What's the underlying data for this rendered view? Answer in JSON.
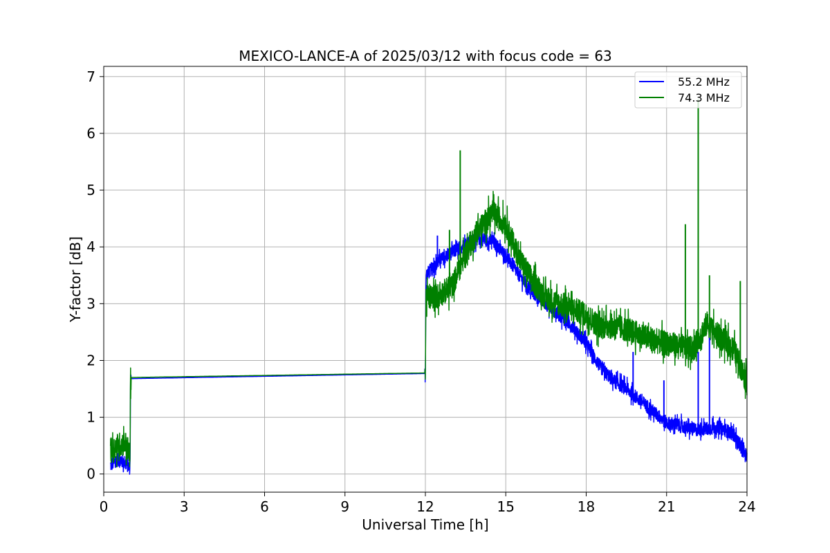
{
  "chart_data": {
    "type": "line",
    "title": "MEXICO-LANCE-A of 2025/03/12 with focus code = 63",
    "xlabel": "Universal Time [h]",
    "ylabel": "Y-factor [dB]",
    "xlim": [
      0,
      24
    ],
    "ylim": [
      -0.32,
      7.18
    ],
    "xticks": [
      0,
      3,
      6,
      9,
      12,
      15,
      18,
      21,
      24
    ],
    "yticks": [
      0,
      1,
      2,
      3,
      4,
      5,
      6,
      7
    ],
    "grid": true,
    "legend_position": "top-right",
    "series": [
      {
        "name": "55.2 MHz",
        "color": "#0000ff",
        "noise": 0.12,
        "x": [
          0.25,
          0.5,
          0.8,
          0.98,
          1.0,
          12.0,
          12.02,
          12.5,
          13.0,
          13.5,
          14.0,
          14.5,
          15.0,
          15.5,
          16.0,
          16.5,
          17.0,
          17.5,
          18.0,
          18.5,
          19.0,
          19.5,
          20.0,
          20.5,
          21.0,
          21.5,
          22.0,
          22.5,
          23.0,
          23.5,
          24.0
        ],
        "y": [
          0.15,
          0.25,
          0.2,
          0.1,
          1.68,
          1.77,
          3.5,
          3.75,
          3.9,
          4.05,
          4.15,
          4.1,
          3.85,
          3.5,
          3.2,
          3.0,
          2.8,
          2.6,
          2.3,
          1.9,
          1.65,
          1.5,
          1.3,
          1.1,
          0.9,
          0.85,
          0.78,
          0.8,
          0.82,
          0.7,
          0.3
        ]
      },
      {
        "name": "74.3 MHz",
        "color": "#008000",
        "noise": 0.22,
        "x": [
          0.25,
          0.5,
          0.8,
          0.98,
          1.0,
          12.0,
          12.02,
          12.5,
          13.0,
          13.5,
          14.0,
          14.5,
          15.0,
          15.5,
          16.0,
          16.5,
          17.0,
          17.5,
          18.0,
          18.5,
          19.0,
          19.5,
          20.0,
          20.5,
          21.0,
          21.5,
          22.0,
          22.5,
          23.0,
          23.5,
          24.0
        ],
        "y": [
          0.4,
          0.5,
          0.55,
          0.3,
          1.7,
          1.78,
          3.1,
          3.15,
          3.3,
          3.9,
          4.3,
          4.6,
          4.4,
          3.8,
          3.4,
          3.1,
          3.0,
          2.9,
          2.8,
          2.6,
          2.6,
          2.55,
          2.45,
          2.35,
          2.3,
          2.25,
          2.2,
          2.65,
          2.4,
          2.2,
          1.6
        ]
      }
    ],
    "spikes": [
      {
        "series": 1,
        "x": 13.3,
        "y": 5.7
      },
      {
        "series": 1,
        "x": 12.9,
        "y": 4.3
      },
      {
        "series": 1,
        "x": 21.7,
        "y": 4.4
      },
      {
        "series": 1,
        "x": 22.18,
        "y": 6.6
      },
      {
        "series": 1,
        "x": 22.6,
        "y": 3.5
      },
      {
        "series": 1,
        "x": 23.75,
        "y": 3.4
      },
      {
        "series": 0,
        "x": 12.45,
        "y": 4.2
      },
      {
        "series": 0,
        "x": 19.75,
        "y": 2.15
      },
      {
        "series": 0,
        "x": 20.9,
        "y": 1.65
      },
      {
        "series": 0,
        "x": 22.18,
        "y": 2.15
      },
      {
        "series": 0,
        "x": 22.6,
        "y": 2.4
      }
    ]
  }
}
